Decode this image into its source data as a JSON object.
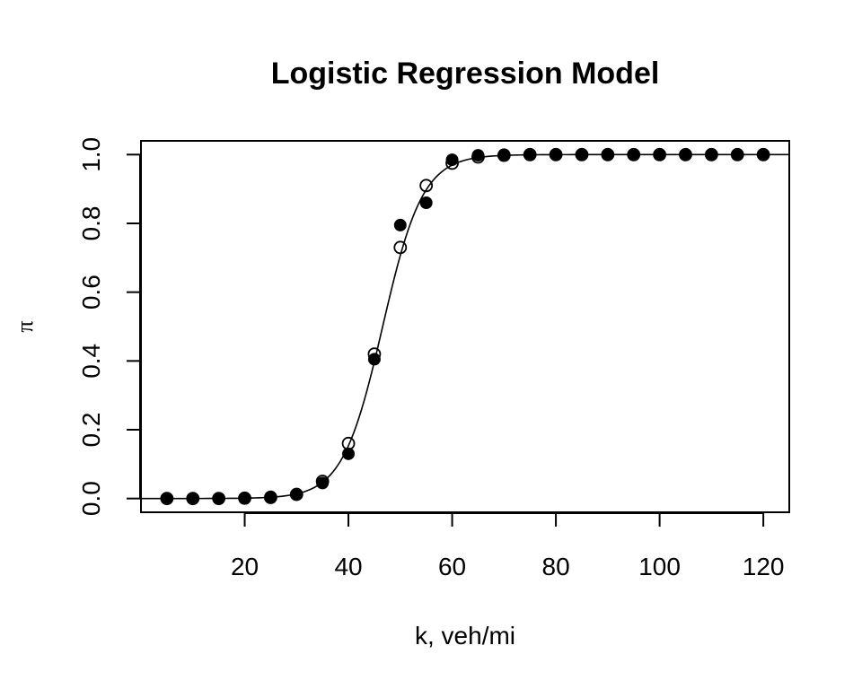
{
  "chart_data": {
    "type": "scatter",
    "title": "Logistic Regression Model",
    "xlabel": "k, veh/mi",
    "ylabel": "π",
    "xlim": [
      0,
      125
    ],
    "ylim": [
      -0.04,
      1.04
    ],
    "x_ticks": [
      20,
      40,
      60,
      80,
      100,
      120
    ],
    "x_tick_labels": [
      "20",
      "40",
      "60",
      "80",
      "100",
      "120"
    ],
    "y_ticks": [
      0.0,
      0.2,
      0.4,
      0.6,
      0.8,
      1.0
    ],
    "y_tick_labels": [
      "0.0",
      "0.2",
      "0.4",
      "0.6",
      "0.8",
      "1.0"
    ],
    "grid": false,
    "series": [
      {
        "marker": "filled-circle",
        "x": [
          5,
          10,
          15,
          20,
          25,
          30,
          35,
          40,
          45,
          50,
          55,
          60,
          65,
          70,
          75,
          80,
          85,
          90,
          95,
          100,
          105,
          110,
          115,
          120
        ],
        "y": [
          0.0,
          0.0,
          0.0,
          0.0,
          0.005,
          0.012,
          0.045,
          0.13,
          0.405,
          0.795,
          0.86,
          0.985,
          0.998,
          1.0,
          1.0,
          1.0,
          1.0,
          1.0,
          1.0,
          1.0,
          1.0,
          1.0,
          1.0,
          1.0
        ]
      },
      {
        "marker": "open-circle",
        "x": [
          5,
          10,
          15,
          20,
          25,
          30,
          35,
          40,
          45,
          50,
          55,
          60,
          65,
          70,
          75,
          80,
          85,
          90,
          95,
          100,
          105,
          110,
          115,
          120
        ],
        "y": [
          0.0,
          0.0,
          0.0,
          0.001,
          0.003,
          0.012,
          0.05,
          0.16,
          0.42,
          0.73,
          0.91,
          0.975,
          0.993,
          0.998,
          1.0,
          1.0,
          1.0,
          1.0,
          1.0,
          1.0,
          1.0,
          1.0,
          1.0,
          1.0
        ]
      },
      {
        "marker": "line",
        "model": "logistic",
        "midpoint": 46.6,
        "slope": 0.2585,
        "x_range": [
          0,
          125
        ]
      }
    ]
  }
}
